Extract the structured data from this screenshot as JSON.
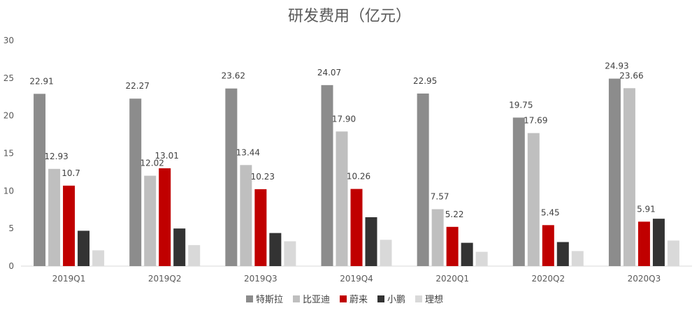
{
  "chart_data": {
    "type": "bar",
    "title": "研发费用（亿元）",
    "xlabel": "",
    "ylabel": "",
    "ylim": [
      0,
      30
    ],
    "yticks": [
      "0",
      "5",
      "10",
      "15",
      "20",
      "25",
      "30"
    ],
    "grid": false,
    "legend_position": "bottom",
    "categories": [
      "2019Q1",
      "2019Q2",
      "2019Q3",
      "2019Q4",
      "2020Q1",
      "2020Q2",
      "2020Q3"
    ],
    "series": [
      {
        "name": "特斯拉",
        "color": "#8c8c8c",
        "values": [
          22.91,
          22.27,
          23.62,
          24.07,
          22.95,
          19.75,
          24.93
        ],
        "labels": [
          "22.91",
          "22.27",
          "23.62",
          "24.07",
          "22.95",
          "19.75",
          "24.93"
        ]
      },
      {
        "name": "比亚迪",
        "color": "#bfbfbf",
        "values": [
          12.93,
          12.02,
          13.44,
          17.9,
          7.57,
          17.69,
          23.66
        ],
        "labels": [
          "12.93",
          "12.02",
          "13.44",
          "17.90",
          "7.57",
          "17.69",
          "23.66"
        ]
      },
      {
        "name": "蔚来",
        "color": "#c00000",
        "values": [
          10.7,
          13.01,
          10.23,
          10.26,
          5.22,
          5.45,
          5.91
        ],
        "labels": [
          "10.7",
          "13.01",
          "10.23",
          "10.26",
          "5.22",
          "5.45",
          "5.91"
        ]
      },
      {
        "name": "小鹏",
        "color": "#333333",
        "values": [
          4.7,
          5.0,
          4.4,
          6.5,
          3.1,
          3.2,
          6.3
        ],
        "labels": [
          "",
          "",
          "",
          "",
          "",
          "",
          ""
        ]
      },
      {
        "name": "理想",
        "color": "#d9d9d9",
        "values": [
          2.1,
          2.8,
          3.3,
          3.5,
          1.9,
          2.0,
          3.4
        ],
        "labels": [
          "",
          "",
          "",
          "",
          "",
          "",
          ""
        ]
      }
    ]
  }
}
